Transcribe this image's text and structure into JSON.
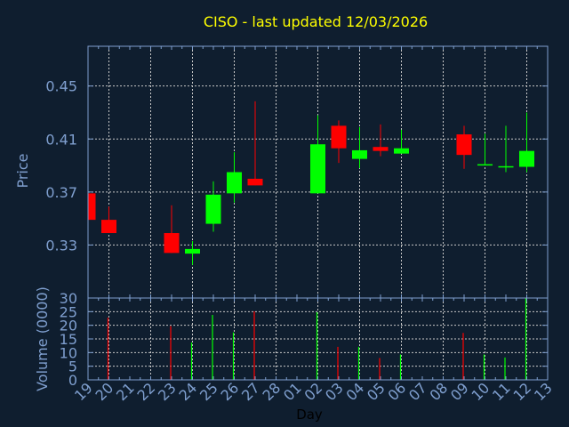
{
  "title": "CISO - last updated 12/03/2026",
  "chart_data": [
    {
      "type": "candlestick",
      "ylabel": "Price",
      "ylim": [
        0.29,
        0.48
      ],
      "yticks": [
        "0.33",
        "0.37",
        "0.41",
        "0.45"
      ],
      "grid": true,
      "x_categories": [
        "19",
        "20",
        "21",
        "22",
        "23",
        "24",
        "25",
        "26",
        "27",
        "28",
        "01",
        "02",
        "03",
        "04",
        "05",
        "06",
        "07",
        "08",
        "09",
        "10",
        "11",
        "12",
        "13"
      ],
      "candles": [
        {
          "day": "19",
          "open": 0.369,
          "high": 0.369,
          "low": 0.349,
          "close": 0.349
        },
        {
          "day": "20",
          "open": 0.349,
          "high": 0.359,
          "low": 0.339,
          "close": 0.339
        },
        {
          "day": "23",
          "open": 0.339,
          "high": 0.36,
          "low": 0.324,
          "close": 0.324
        },
        {
          "day": "24",
          "open": 0.3235,
          "high": 0.333,
          "low": 0.315,
          "close": 0.327
        },
        {
          "day": "25",
          "open": 0.346,
          "high": 0.378,
          "low": 0.34,
          "close": 0.368
        },
        {
          "day": "26",
          "open": 0.369,
          "high": 0.4,
          "low": 0.362,
          "close": 0.385
        },
        {
          "day": "27",
          "open": 0.38,
          "high": 0.4385,
          "low": 0.375,
          "close": 0.375
        },
        {
          "day": "02",
          "open": 0.369,
          "high": 0.428,
          "low": 0.369,
          "close": 0.406
        },
        {
          "day": "03",
          "open": 0.42,
          "high": 0.424,
          "low": 0.392,
          "close": 0.403
        },
        {
          "day": "04",
          "open": 0.395,
          "high": 0.419,
          "low": 0.388,
          "close": 0.4015
        },
        {
          "day": "05",
          "open": 0.404,
          "high": 0.421,
          "low": 0.397,
          "close": 0.401
        },
        {
          "day": "06",
          "open": 0.399,
          "high": 0.417,
          "low": 0.399,
          "close": 0.403
        },
        {
          "day": "09",
          "open": 0.4135,
          "high": 0.42,
          "low": 0.3875,
          "close": 0.398
        },
        {
          "day": "10",
          "open": 0.3903,
          "high": 0.414,
          "low": 0.3903,
          "close": 0.391
        },
        {
          "day": "11",
          "open": 0.389,
          "high": 0.42,
          "low": 0.385,
          "close": 0.3895
        },
        {
          "day": "12",
          "open": 0.389,
          "high": 0.43,
          "low": 0.385,
          "close": 0.401
        }
      ]
    },
    {
      "type": "bar",
      "ylabel": "Volume (0000)",
      "xlabel": "Day",
      "ylim": [
        0,
        30
      ],
      "yticks": [
        "0",
        "5",
        "10",
        "15",
        "20",
        "25",
        "30"
      ],
      "grid": true,
      "volumes": [
        {
          "day": "20",
          "value": 22.8,
          "direction": "down"
        },
        {
          "day": "23",
          "value": 19.7,
          "direction": "down"
        },
        {
          "day": "24",
          "value": 13.7,
          "direction": "up"
        },
        {
          "day": "25",
          "value": 23.8,
          "direction": "up"
        },
        {
          "day": "26",
          "value": 17.4,
          "direction": "up"
        },
        {
          "day": "27",
          "value": 25.1,
          "direction": "down"
        },
        {
          "day": "02",
          "value": 24.8,
          "direction": "up"
        },
        {
          "day": "03",
          "value": 12.1,
          "direction": "down"
        },
        {
          "day": "04",
          "value": 12.1,
          "direction": "up"
        },
        {
          "day": "05",
          "value": 8.0,
          "direction": "down"
        },
        {
          "day": "06",
          "value": 9.3,
          "direction": "up"
        },
        {
          "day": "09",
          "value": 17.2,
          "direction": "down"
        },
        {
          "day": "10",
          "value": 9.3,
          "direction": "up"
        },
        {
          "day": "11",
          "value": 8.2,
          "direction": "up"
        },
        {
          "day": "12",
          "value": 29.9,
          "direction": "up"
        }
      ]
    }
  ],
  "colors": {
    "background": "#0f1e2f",
    "up": "#00ff00",
    "down": "#ff0000",
    "title": "#ffff00",
    "axis": "#7f9fcf",
    "grid": "#c8c8c8"
  }
}
